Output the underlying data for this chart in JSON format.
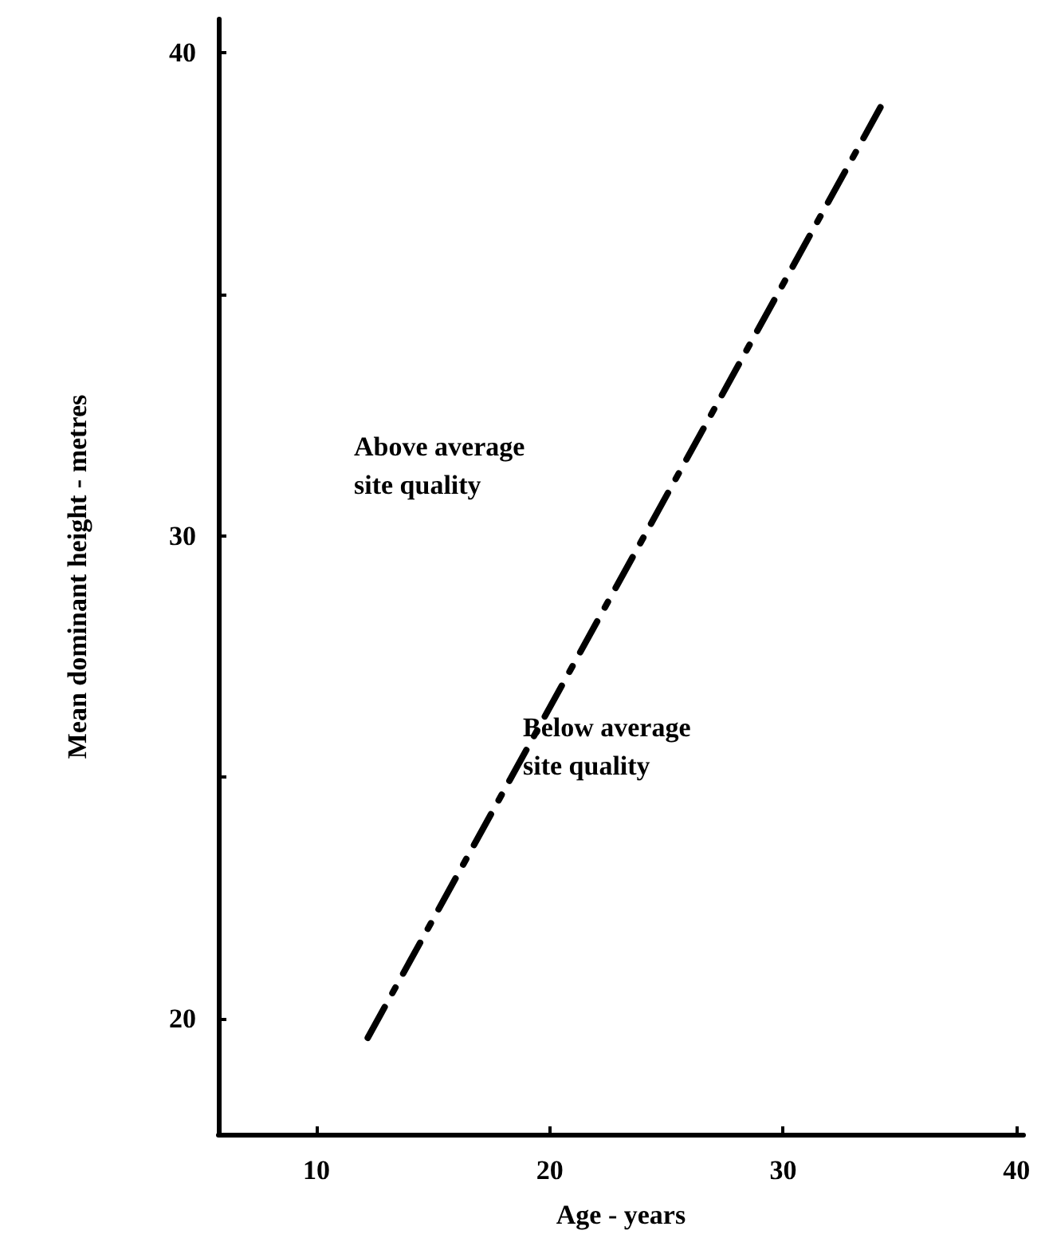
{
  "chart_data": {
    "type": "line",
    "xlabel": "Age - years",
    "ylabel": "Mean dominant height - metres",
    "x": [
      12.2,
      34.2
    ],
    "series": [
      {
        "color": "#000000",
        "values": [
          19.6,
          38.9
        ]
      }
    ],
    "xlim": [
      5.8,
      40.3
    ],
    "xticks": [
      10,
      20,
      30,
      40
    ],
    "ylim": [
      17.6,
      40.7
    ],
    "yticks": [
      20,
      {
        "value": 25,
        "label": null
      },
      30,
      {
        "value": 35,
        "label": null
      },
      40
    ],
    "grid": false,
    "marker": "none",
    "line_style": "dashed",
    "annotations": [
      "Above average\nsite quality",
      "Below average\nsite quality"
    ]
  }
}
